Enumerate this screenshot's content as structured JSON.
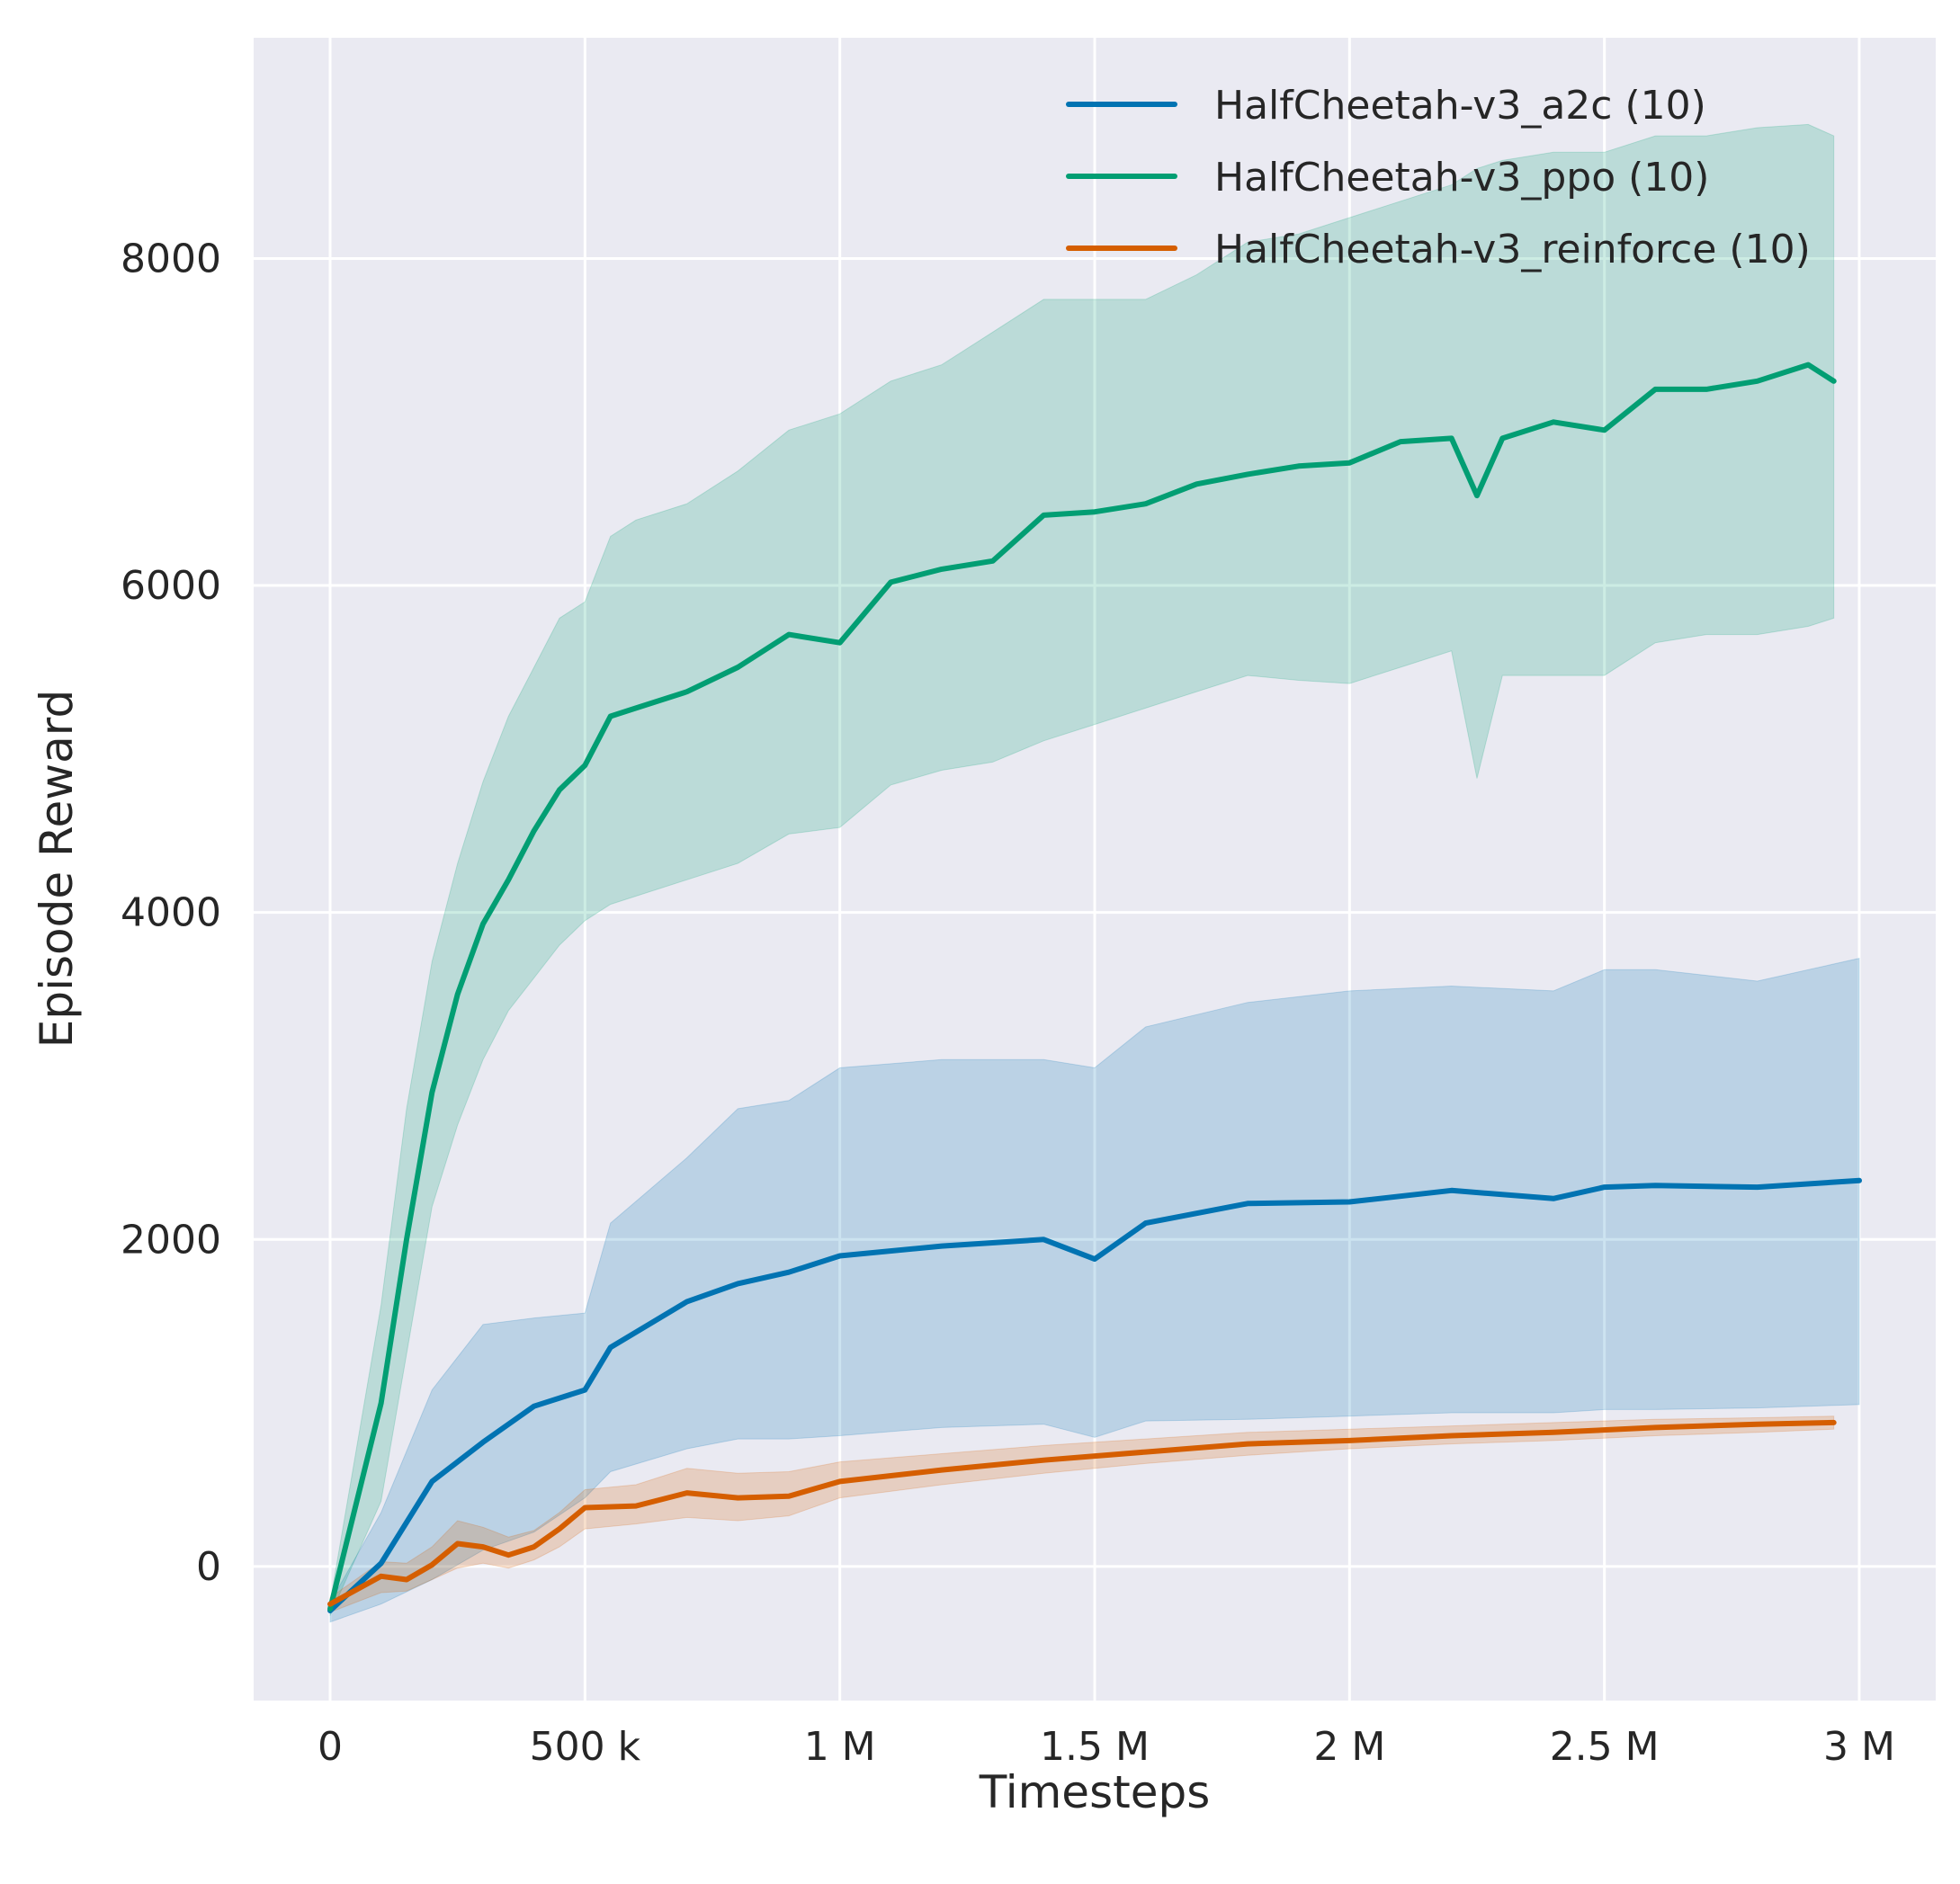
{
  "chart_data": {
    "type": "line",
    "title": "",
    "xlabel": "Timesteps",
    "ylabel": "Episode Reward",
    "xlim": [
      -150000,
      3150000
    ],
    "ylim": [
      -820,
      9350
    ],
    "grid": true,
    "legend_position": "top-right",
    "x_ticks": [
      {
        "value": 0,
        "label": "0"
      },
      {
        "value": 500000,
        "label": "500 k"
      },
      {
        "value": 1000000,
        "label": "1 M"
      },
      {
        "value": 1500000,
        "label": "1.5 M"
      },
      {
        "value": 2000000,
        "label": "2 M"
      },
      {
        "value": 2500000,
        "label": "2.5 M"
      },
      {
        "value": 3000000,
        "label": "3 M"
      }
    ],
    "y_ticks": [
      {
        "value": 0,
        "label": "0"
      },
      {
        "value": 2000,
        "label": "2000"
      },
      {
        "value": 4000,
        "label": "4000"
      },
      {
        "value": 6000,
        "label": "6000"
      },
      {
        "value": 8000,
        "label": "8000"
      }
    ],
    "series": [
      {
        "name": "HalfCheetah-v3_a2c (10)",
        "color": "#0173b2",
        "x": [
          0,
          100000,
          200000,
          300000,
          400000,
          500000,
          550000,
          700000,
          800000,
          900000,
          1000000,
          1200000,
          1400000,
          1500000,
          1600000,
          1800000,
          2000000,
          2200000,
          2400000,
          2500000,
          2600000,
          2800000,
          3000000
        ],
        "mean": [
          -270,
          20,
          520,
          760,
          980,
          1080,
          1340,
          1620,
          1730,
          1800,
          1900,
          1960,
          2000,
          1880,
          2100,
          2220,
          2230,
          2300,
          2250,
          2320,
          2330,
          2320,
          2360
        ],
        "lower": [
          -340,
          -230,
          -80,
          100,
          210,
          420,
          580,
          720,
          780,
          780,
          800,
          850,
          870,
          790,
          890,
          900,
          920,
          940,
          940,
          960,
          960,
          970,
          990
        ],
        "upper": [
          -220,
          330,
          1080,
          1480,
          1520,
          1550,
          2100,
          2500,
          2800,
          2850,
          3050,
          3100,
          3100,
          3050,
          3300,
          3450,
          3520,
          3550,
          3520,
          3650,
          3650,
          3580,
          3720
        ]
      },
      {
        "name": "HalfCheetah-v3_ppo (10)",
        "color": "#029e73",
        "x": [
          0,
          100000,
          150000,
          200000,
          250000,
          300000,
          350000,
          400000,
          450000,
          500000,
          550000,
          600000,
          700000,
          800000,
          900000,
          1000000,
          1100000,
          1200000,
          1300000,
          1400000,
          1500000,
          1600000,
          1700000,
          1800000,
          1900000,
          2000000,
          2100000,
          2200000,
          2250000,
          2300000,
          2400000,
          2500000,
          2600000,
          2700000,
          2800000,
          2900000,
          2950000
        ],
        "mean": [
          -260,
          1000,
          2000,
          2900,
          3500,
          3930,
          4200,
          4500,
          4750,
          4900,
          5200,
          5250,
          5350,
          5500,
          5700,
          5650,
          6020,
          6100,
          6150,
          6430,
          6450,
          6500,
          6620,
          6680,
          6730,
          6750,
          6880,
          6900,
          6550,
          6900,
          7000,
          6950,
          7200,
          7200,
          7250,
          7350,
          7250
        ],
        "lower": [
          -300,
          400,
          1300,
          2200,
          2700,
          3100,
          3400,
          3600,
          3800,
          3950,
          4050,
          4100,
          4200,
          4300,
          4480,
          4520,
          4780,
          4870,
          4920,
          5050,
          5150,
          5250,
          5350,
          5450,
          5420,
          5400,
          5500,
          5600,
          4820,
          5450,
          5450,
          5450,
          5650,
          5700,
          5700,
          5750,
          5800
        ],
        "upper": [
          -220,
          1600,
          2800,
          3700,
          4300,
          4800,
          5200,
          5500,
          5800,
          5900,
          6300,
          6400,
          6500,
          6700,
          6950,
          7050,
          7250,
          7350,
          7550,
          7750,
          7750,
          7750,
          7900,
          8100,
          8150,
          8250,
          8350,
          8450,
          8550,
          8600,
          8650,
          8650,
          8750,
          8750,
          8800,
          8820,
          8750
        ]
      },
      {
        "name": "HalfCheetah-v3_reinforce (10)",
        "color": "#d55e00",
        "x": [
          0,
          100000,
          150000,
          200000,
          250000,
          300000,
          350000,
          400000,
          450000,
          500000,
          600000,
          700000,
          800000,
          900000,
          1000000,
          1200000,
          1400000,
          1600000,
          1800000,
          2000000,
          2200000,
          2400000,
          2600000,
          2800000,
          2950000
        ],
        "mean": [
          -230,
          -60,
          -80,
          10,
          140,
          120,
          70,
          120,
          230,
          360,
          370,
          450,
          420,
          430,
          520,
          590,
          650,
          700,
          750,
          770,
          800,
          820,
          850,
          870,
          880
        ],
        "lower": [
          -280,
          -160,
          -150,
          -80,
          -10,
          20,
          -10,
          40,
          120,
          230,
          260,
          300,
          280,
          310,
          420,
          500,
          570,
          630,
          680,
          720,
          750,
          770,
          800,
          820,
          840
        ],
        "upper": [
          -190,
          30,
          20,
          120,
          280,
          240,
          180,
          220,
          330,
          470,
          500,
          600,
          570,
          580,
          640,
          690,
          740,
          780,
          820,
          840,
          860,
          880,
          900,
          910,
          920
        ]
      }
    ]
  }
}
